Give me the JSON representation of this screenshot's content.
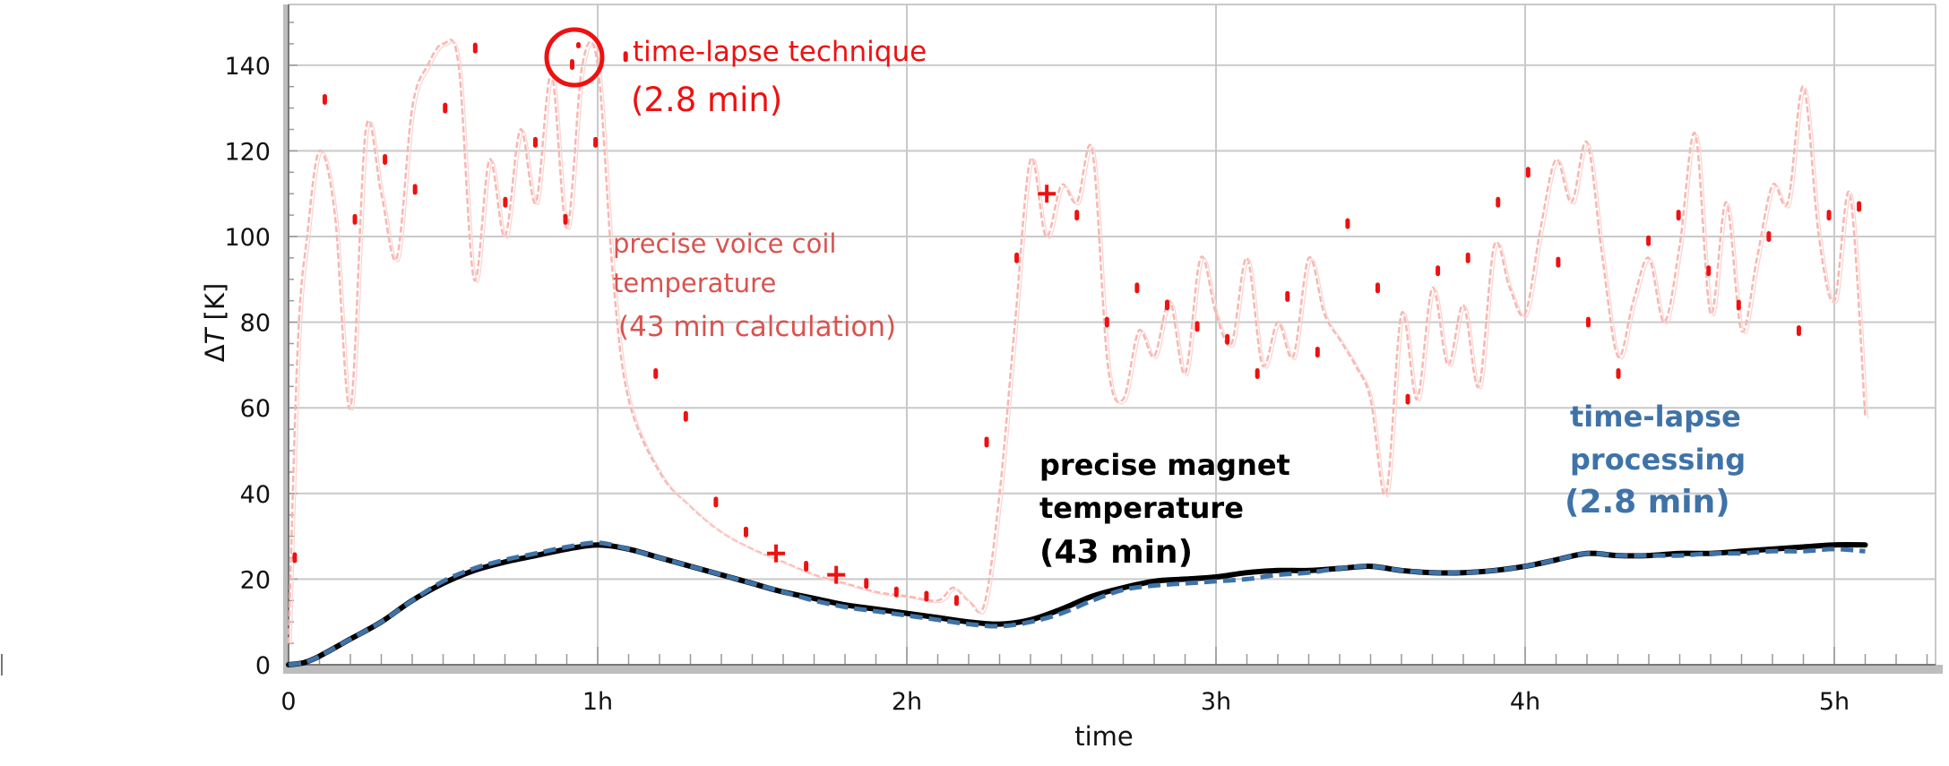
{
  "chart_data": {
    "type": "line",
    "xlabel": "time",
    "ylabel_delta": "Δ",
    "ylabel_var": "T",
    "ylabel_unit": " [K]",
    "x_range_hours": [
      0,
      5.4
    ],
    "ylim": [
      0,
      155
    ],
    "x_ticks": [
      {
        "value": 0,
        "label": "0"
      },
      {
        "value": 1,
        "label": "1h"
      },
      {
        "value": 2,
        "label": "2h"
      },
      {
        "value": 3,
        "label": "3h"
      },
      {
        "value": 4,
        "label": "4h"
      },
      {
        "value": 5,
        "label": "5h"
      }
    ],
    "y_ticks": [
      {
        "value": 0,
        "label": "0"
      },
      {
        "value": 20,
        "label": "20"
      },
      {
        "value": 40,
        "label": "40"
      },
      {
        "value": 60,
        "label": "60"
      },
      {
        "value": 80,
        "label": "80"
      },
      {
        "value": 100,
        "label": "100"
      },
      {
        "value": 120,
        "label": "120"
      },
      {
        "value": 140,
        "label": "140"
      }
    ],
    "grid": true,
    "colors": {
      "coil_line": "#f6b7b2",
      "coil_points": "#ee1111",
      "magnet_line": "#000000",
      "magnet_dashed": "#3f73a8",
      "grid": "#c9c9c9",
      "axis_shadow": "#bdbdbd"
    },
    "voice_coil_precise": {
      "x": [
        0.0,
        0.03,
        0.06,
        0.1,
        0.15,
        0.2,
        0.25,
        0.3,
        0.35,
        0.4,
        0.45,
        0.5,
        0.55,
        0.6,
        0.65,
        0.7,
        0.75,
        0.8,
        0.85,
        0.9,
        0.95,
        1.0,
        1.05,
        1.1,
        1.2,
        1.3,
        1.4,
        1.5,
        1.6,
        1.7,
        1.8,
        1.9,
        2.0,
        2.1,
        2.15,
        2.2,
        2.25,
        2.3,
        2.35,
        2.4,
        2.45,
        2.5,
        2.55,
        2.6,
        2.65,
        2.7,
        2.75,
        2.8,
        2.85,
        2.9,
        2.95,
        3.0,
        3.05,
        3.1,
        3.15,
        3.2,
        3.25,
        3.3,
        3.35,
        3.4,
        3.45,
        3.5,
        3.55,
        3.6,
        3.65,
        3.7,
        3.75,
        3.8,
        3.85,
        3.9,
        3.95,
        4.0,
        4.05,
        4.1,
        4.15,
        4.2,
        4.25,
        4.3,
        4.35,
        4.4,
        4.45,
        4.5,
        4.55,
        4.6,
        4.65,
        4.7,
        4.75,
        4.8,
        4.85,
        4.9,
        4.95,
        5.0,
        5.05,
        5.1
      ],
      "y": [
        5,
        75,
        100,
        120,
        105,
        60,
        125,
        110,
        95,
        130,
        140,
        145,
        140,
        90,
        118,
        100,
        125,
        108,
        138,
        102,
        140,
        140,
        90,
        62,
        45,
        37,
        31,
        27,
        24,
        21,
        19,
        17,
        16,
        15,
        18,
        15,
        14,
        40,
        80,
        118,
        100,
        112,
        108,
        120,
        70,
        62,
        78,
        72,
        85,
        68,
        95,
        82,
        75,
        95,
        70,
        80,
        72,
        95,
        82,
        76,
        70,
        62,
        40,
        82,
        62,
        88,
        70,
        84,
        65,
        98,
        88,
        82,
        102,
        118,
        108,
        122,
        95,
        72,
        85,
        95,
        80,
        98,
        124,
        82,
        108,
        78,
        95,
        112,
        108,
        135,
        100,
        85,
        110,
        58
      ],
      "points_y": [
        25,
        132,
        104,
        118,
        111,
        130,
        144,
        108,
        122,
        104,
        122,
        142,
        68,
        58,
        38,
        31,
        26,
        23,
        21,
        19,
        17,
        16,
        15,
        52,
        95,
        110,
        105,
        80,
        88,
        84,
        79,
        76,
        68,
        86,
        73,
        103,
        88,
        62,
        92,
        95,
        108,
        115,
        94,
        80,
        68,
        99,
        105,
        92,
        84,
        100,
        78,
        105,
        107
      ]
    },
    "magnet_precise": {
      "x": [
        0,
        0.05,
        0.1,
        0.2,
        0.3,
        0.4,
        0.5,
        0.6,
        0.7,
        0.8,
        0.9,
        1.0,
        1.1,
        1.2,
        1.3,
        1.4,
        1.5,
        1.6,
        1.7,
        1.8,
        1.9,
        2.0,
        2.1,
        2.2,
        2.3,
        2.4,
        2.5,
        2.6,
        2.7,
        2.8,
        2.9,
        3.0,
        3.1,
        3.2,
        3.3,
        3.4,
        3.5,
        3.6,
        3.7,
        3.8,
        3.9,
        4.0,
        4.1,
        4.2,
        4.3,
        4.4,
        4.5,
        4.6,
        4.7,
        4.8,
        4.9,
        5.0,
        5.1
      ],
      "y": [
        0,
        0.5,
        2,
        6,
        10,
        15,
        19,
        22,
        24,
        25.5,
        27,
        28,
        27,
        25,
        23,
        21,
        19,
        17,
        15.5,
        14,
        13,
        12,
        11,
        10,
        9.5,
        10.5,
        13,
        16,
        18,
        19.5,
        20,
        20.5,
        21.5,
        22,
        22,
        22.5,
        23,
        22,
        21.5,
        21.5,
        22,
        23,
        24.5,
        26,
        25.5,
        25.5,
        26,
        26,
        26.5,
        27,
        27.5,
        28,
        28
      ]
    },
    "magnet_timelapse": {
      "x": [
        0,
        0.05,
        0.1,
        0.2,
        0.3,
        0.4,
        0.5,
        0.6,
        0.7,
        0.8,
        0.9,
        1.0,
        1.1,
        1.2,
        1.3,
        1.4,
        1.5,
        1.6,
        1.7,
        1.8,
        1.9,
        2.0,
        2.1,
        2.2,
        2.3,
        2.4,
        2.5,
        2.6,
        2.7,
        2.8,
        2.9,
        3.0,
        3.1,
        3.2,
        3.3,
        3.4,
        3.5,
        3.6,
        3.7,
        3.8,
        3.9,
        4.0,
        4.1,
        4.2,
        4.3,
        4.4,
        4.5,
        4.6,
        4.7,
        4.8,
        4.9,
        5.0,
        5.1
      ],
      "y": [
        0,
        0.5,
        2,
        6,
        10,
        15,
        19.5,
        22.5,
        24.5,
        26,
        27.5,
        28.5,
        27,
        25,
        23,
        21,
        19,
        17,
        15,
        13.5,
        12.5,
        11.5,
        10.5,
        9.5,
        9,
        10,
        12,
        15,
        17.5,
        18.5,
        19,
        19.5,
        20,
        21,
        21.5,
        22.5,
        23,
        22,
        21.5,
        21.5,
        22,
        23,
        24.5,
        26,
        25.5,
        25.5,
        25.5,
        26,
        26,
        26.5,
        26.5,
        27,
        26.5
      ]
    },
    "annotations": {
      "timelapse_technique": "time-lapse technique",
      "timelapse_technique_time": "(2.8 min)",
      "coil_line1": "precise voice coil",
      "coil_line2": "temperature",
      "coil_line3": "(43 min calculation)",
      "magnet_line1": "precise magnet",
      "magnet_line2": "temperature",
      "magnet_line3": "(43 min)",
      "processing_line1": "time-lapse",
      "processing_line2": "processing",
      "processing_line3": "(2.8 min)"
    }
  }
}
